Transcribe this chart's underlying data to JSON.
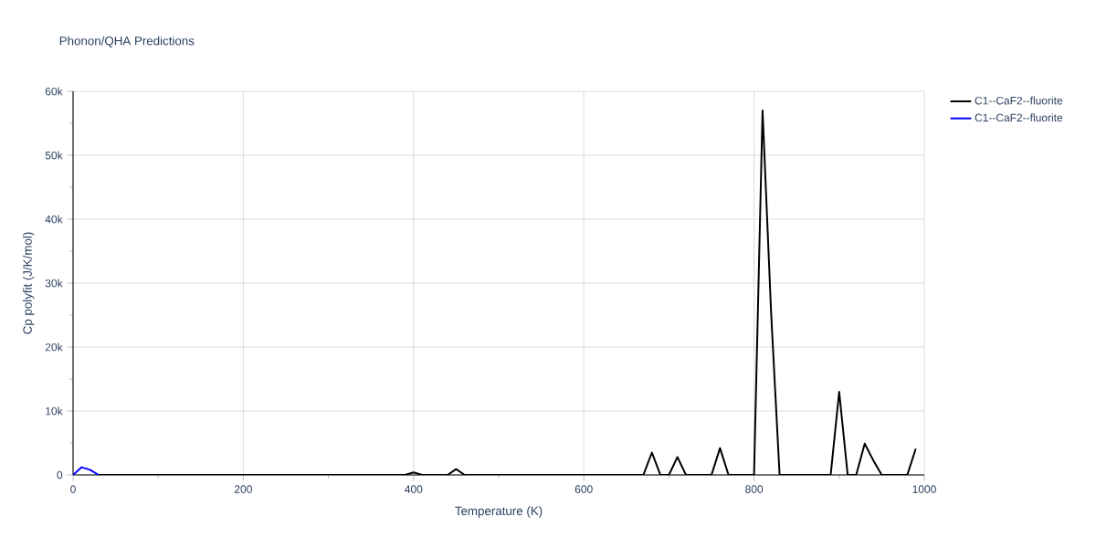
{
  "chart_data": {
    "type": "line",
    "title": "Phonon/QHA Predictions",
    "xlabel": "Temperature (K)",
    "ylabel": "Cp polyfit (J/K/mol)",
    "xlim": [
      0,
      1000
    ],
    "xticks": [
      0,
      200,
      400,
      600,
      800,
      1000
    ],
    "ylim": [
      0,
      60000
    ],
    "yticks": [
      0,
      {
        "value": 10000,
        "label": "10k"
      },
      {
        "value": 20000,
        "label": "20k"
      },
      {
        "value": 30000,
        "label": "30k"
      },
      {
        "value": 40000,
        "label": "40k"
      },
      {
        "value": 50000,
        "label": "50k"
      },
      {
        "value": 60000,
        "label": "60k"
      }
    ],
    "grid": true,
    "legend": "top right",
    "marker": "none",
    "line_style": "solid",
    "series": [
      {
        "name": "C1--CaF2--fluorite",
        "color": "#000000",
        "x": [
          30,
          390,
          400,
          410,
          440,
          450,
          460,
          670,
          680,
          690,
          700,
          710,
          720,
          750,
          760,
          770,
          800,
          810,
          820,
          830,
          890,
          900,
          910,
          920,
          930,
          940,
          950,
          980,
          990
        ],
        "values": [
          0,
          0,
          400,
          0,
          0,
          900,
          0,
          0,
          3500,
          0,
          0,
          2800,
          0,
          0,
          4200,
          0,
          0,
          57000,
          25500,
          0,
          0,
          13000,
          0,
          0,
          4900,
          2300,
          0,
          0,
          4100
        ]
      },
      {
        "name": "C1--CaF2--fluorite",
        "color": "#0000ff",
        "x": [
          0,
          10,
          20,
          30
        ],
        "values": [
          0,
          1200,
          800,
          0
        ]
      }
    ]
  }
}
